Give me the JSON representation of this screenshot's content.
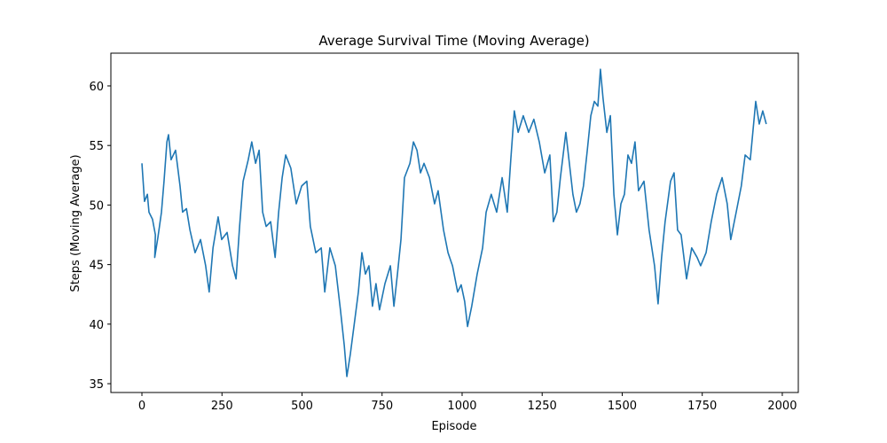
{
  "chart_data": {
    "type": "line",
    "title": "Average Survival Time (Moving Average)",
    "x_label": "Episode",
    "y_label": "Steps (Moving Average)",
    "xlim": [
      -97,
      2050
    ],
    "ylim": [
      34.26,
      62.75
    ],
    "xticks": [
      0,
      250,
      500,
      750,
      1000,
      1250,
      1500,
      1750,
      2000
    ],
    "yticks": [
      35,
      40,
      45,
      50,
      55,
      60
    ],
    "grid": false,
    "series": [
      {
        "name": "Moving Average",
        "color": "#1f77b4",
        "x": [
          0,
          3,
          8,
          17,
          22,
          33,
          42,
          40,
          50,
          61,
          69,
          78,
          83,
          91,
          105,
          119,
          127,
          139,
          150,
          166,
          183,
          199,
          210,
          222,
          238,
          249,
          266,
          283,
          294,
          305,
          316,
          332,
          343,
          355,
          366,
          377,
          388,
          402,
          416,
          427,
          438,
          449,
          465,
          482,
          499,
          515,
          526,
          543,
          560,
          571,
          587,
          604,
          620,
          632,
          640,
          651,
          665,
          676,
          687,
          698,
          709,
          720,
          731,
          742,
          759,
          776,
          787,
          798,
          809,
          820,
          837,
          848,
          859,
          870,
          881,
          898,
          914,
          925,
          942,
          956,
          970,
          986,
          997,
          1008,
          1017,
          1030,
          1047,
          1064,
          1075,
          1091,
          1108,
          1125,
          1141,
          1152,
          1163,
          1175,
          1191,
          1208,
          1224,
          1241,
          1258,
          1274,
          1285,
          1296,
          1307,
          1324,
          1335,
          1346,
          1357,
          1368,
          1379,
          1391,
          1402,
          1413,
          1424,
          1432,
          1440,
          1452,
          1463,
          1474,
          1485,
          1496,
          1507,
          1518,
          1529,
          1540,
          1551,
          1568,
          1584,
          1601,
          1612,
          1623,
          1634,
          1651,
          1662,
          1673,
          1684,
          1701,
          1717,
          1734,
          1745,
          1762,
          1778,
          1795,
          1812,
          1828,
          1839,
          1856,
          1872,
          1884,
          1900,
          1917,
          1928,
          1939,
          1950
        ],
        "values": [
          53.5,
          52.3,
          50.3,
          50.9,
          49.4,
          48.8,
          47.5,
          45.6,
          47.3,
          49.4,
          52.0,
          55.3,
          55.9,
          53.8,
          54.6,
          51.6,
          49.4,
          49.7,
          47.9,
          46.0,
          47.1,
          44.9,
          42.7,
          46.4,
          49.0,
          47.1,
          47.7,
          44.9,
          43.8,
          48.2,
          52.0,
          53.8,
          55.3,
          53.5,
          54.6,
          49.4,
          48.2,
          48.6,
          45.6,
          49.4,
          52.3,
          54.2,
          53.1,
          50.1,
          51.6,
          52.0,
          48.2,
          46.0,
          46.4,
          42.7,
          46.4,
          44.9,
          41.2,
          38.2,
          35.6,
          37.5,
          40.4,
          42.7,
          46.0,
          44.2,
          44.9,
          41.5,
          43.4,
          41.2,
          43.4,
          44.9,
          41.5,
          44.2,
          47.1,
          52.3,
          53.5,
          55.3,
          54.6,
          52.7,
          53.5,
          52.3,
          50.1,
          51.2,
          47.9,
          46.0,
          44.9,
          42.7,
          43.3,
          41.9,
          39.8,
          41.5,
          44.2,
          46.4,
          49.4,
          50.9,
          49.4,
          52.3,
          49.4,
          53.8,
          57.9,
          56.1,
          57.5,
          56.1,
          57.2,
          55.3,
          52.7,
          54.2,
          48.6,
          49.4,
          52.3,
          56.1,
          53.5,
          50.9,
          49.4,
          50.1,
          51.6,
          54.6,
          57.5,
          58.7,
          58.3,
          61.4,
          59.0,
          56.1,
          57.5,
          50.9,
          47.5,
          50.1,
          50.9,
          54.2,
          53.5,
          55.3,
          51.2,
          52.0,
          47.9,
          44.9,
          41.7,
          45.6,
          48.6,
          52.0,
          52.7,
          47.9,
          47.5,
          43.8,
          46.4,
          45.6,
          44.9,
          46.0,
          48.6,
          50.9,
          52.3,
          50.1,
          47.1,
          49.4,
          51.6,
          54.2,
          53.8,
          58.7,
          56.8,
          57.9,
          56.8
        ]
      }
    ]
  }
}
